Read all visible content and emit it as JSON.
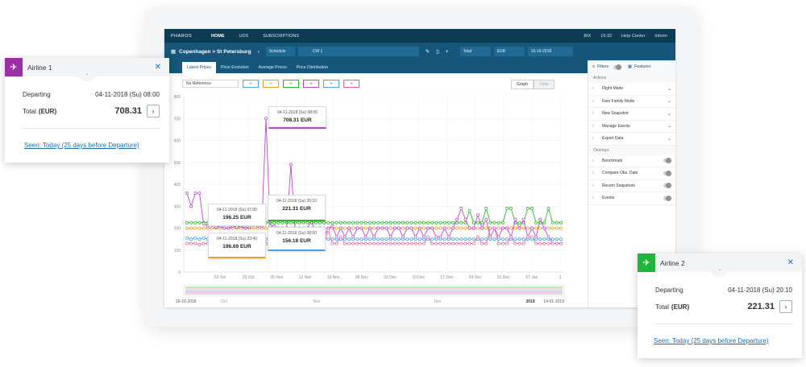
{
  "app": {
    "logo": "PHAROS",
    "nav": [
      "HOME",
      "UDS",
      "SUBSCRIPTIONS"
    ],
    "top_right": [
      "BIX",
      "15:32",
      "Help Center",
      "Inform"
    ],
    "route": "Copenhagen > St Petersburg",
    "schedule_label": "Schedule",
    "week": "CW 1",
    "total": "Total",
    "currency": "EUR",
    "date": "16-16-2018",
    "tabs": [
      "Latest Prices",
      "Price Evolution",
      "Average Prices",
      "Price Distribution"
    ],
    "filters_label": "Filters",
    "features_label": "Features",
    "reference": "No Reference",
    "graph_label": "Graph",
    "table_label": "Table"
  },
  "right_panel": {
    "actions_title": "Actions",
    "actions": [
      "Flight Mode",
      "Fare Family Mode",
      "New Snapshot",
      "Manage Events",
      "Export Data"
    ],
    "overlays_title": "Overlays",
    "overlays": [
      "Benchmark",
      "Compare Obs. Date",
      "Recent Snapshots",
      "Events"
    ]
  },
  "chart_data": {
    "type": "line",
    "x_ticks": [
      "22 Oct",
      "29 Oct",
      "05 Nov",
      "12 Nov",
      "19 Nov",
      "26 Nov",
      "03 Dec",
      "10 Dec",
      "17 Dec",
      "24 Dec",
      "31 Dec",
      "07 Jan",
      "1"
    ],
    "y_ticks": [
      "0",
      "100",
      "200",
      "300",
      "400",
      "500",
      "600",
      "700",
      "800"
    ],
    "ylim": [
      0,
      800
    ],
    "range_start": "16-16-2018",
    "range_end": "14-01-2019",
    "range_months": [
      "Oct",
      "Nov",
      "Dec",
      "2019"
    ],
    "series": [
      {
        "color": "#2ab52a",
        "values": [
          225,
          225,
          225,
          225,
          225,
          225,
          225,
          225,
          225,
          225,
          225,
          225,
          225,
          225,
          225,
          225,
          225,
          225,
          225,
          225,
          225,
          225,
          225,
          225,
          225,
          225,
          225,
          225,
          225,
          225,
          225,
          225,
          225,
          225,
          225,
          225,
          225,
          225,
          225,
          225,
          225,
          225,
          225,
          225,
          225,
          225,
          225,
          225,
          225,
          225,
          225,
          225,
          225,
          225,
          225,
          225,
          225,
          225,
          225,
          225,
          225,
          225,
          225,
          225,
          225,
          225,
          225,
          225,
          280,
          225,
          225,
          225,
          290,
          225,
          225,
          225,
          225,
          290,
          290,
          225,
          225,
          225,
          290,
          290,
          225,
          225,
          225,
          290,
          225,
          225,
          225
        ]
      },
      {
        "color": "#f29b2c",
        "values": [
          200,
          200,
          200,
          200,
          200,
          200,
          200,
          200,
          200,
          200,
          200,
          200,
          200,
          200,
          200,
          200,
          200,
          200,
          200,
          200,
          200,
          200,
          200,
          200,
          200,
          200,
          200,
          200,
          200,
          200,
          200,
          200,
          200,
          200,
          200,
          200,
          200,
          200,
          200,
          200,
          200,
          200,
          200,
          200,
          200,
          200,
          200,
          200,
          200,
          200,
          200,
          200,
          200,
          200,
          200,
          200,
          200,
          200,
          200,
          200,
          200,
          200,
          200,
          200,
          200,
          200,
          200,
          200,
          200,
          200,
          200,
          200,
          200,
          200,
          200,
          200,
          200,
          200,
          200,
          200,
          200,
          200,
          200,
          200,
          200,
          200,
          200,
          200,
          200,
          200,
          200
        ]
      },
      {
        "color": "#4ba3e3",
        "values": [
          155,
          150,
          155,
          150,
          155,
          150,
          155,
          150,
          150,
          150,
          155,
          150,
          150,
          150,
          150,
          150,
          155,
          150,
          150,
          150,
          150,
          150,
          150,
          150,
          150,
          150,
          150,
          150,
          150,
          150,
          150,
          150,
          150,
          150,
          150,
          150,
          150,
          150,
          150,
          150,
          150,
          150,
          150,
          150,
          150,
          150,
          150,
          150,
          150,
          150,
          150,
          150,
          150,
          150,
          150,
          150,
          150,
          150,
          150,
          150,
          150,
          150,
          150,
          150,
          150,
          150,
          150,
          150,
          150,
          150,
          150,
          150,
          150,
          150,
          150,
          150,
          150,
          150,
          150,
          150,
          150,
          150,
          150,
          150,
          150,
          150,
          150,
          150,
          150,
          150,
          150
        ]
      },
      {
        "color": "#b54ac8",
        "values": [
          360,
          300,
          360,
          360,
          220,
          210,
          215,
          205,
          210,
          200,
          200,
          210,
          205,
          210,
          200,
          205,
          215,
          210,
          210,
          700,
          210,
          210,
          200,
          200,
          200,
          490,
          200,
          200,
          190,
          200,
          240,
          160,
          200,
          160,
          200,
          210,
          160,
          200,
          160,
          200,
          160,
          200,
          200,
          160,
          200,
          160,
          200,
          200,
          200,
          160,
          200,
          200,
          160,
          200,
          200,
          160,
          200,
          160,
          200,
          200,
          160,
          160,
          200,
          160,
          200,
          240,
          290,
          240,
          200,
          200,
          260,
          200,
          240,
          160,
          200,
          160,
          200,
          200,
          160,
          240,
          200,
          240,
          160,
          200,
          160,
          240,
          200,
          160,
          130,
          130,
          130
        ]
      },
      {
        "color": "#ee5fa8",
        "values": [
          130,
          130,
          130,
          125,
          130,
          130,
          125,
          130,
          130,
          130,
          130,
          125,
          130,
          130,
          130,
          130,
          130,
          130,
          130,
          130,
          130,
          130,
          130,
          130,
          130,
          130,
          130,
          130,
          130,
          130,
          130,
          130,
          130,
          130,
          190,
          130,
          130,
          160,
          130,
          130,
          130,
          130,
          130,
          130,
          130,
          130,
          130,
          130,
          130,
          130,
          130,
          130,
          130,
          130,
          130,
          130,
          130,
          130,
          160,
          130,
          130,
          130,
          130,
          130,
          130,
          130,
          130,
          130,
          130,
          130,
          160,
          130,
          130,
          200,
          200,
          130,
          130,
          130,
          160,
          130,
          130,
          130,
          160,
          160,
          130,
          130,
          130,
          130,
          130,
          130,
          130
        ]
      }
    ],
    "tooltips": [
      {
        "date": "04-11-2018 (Su) 08:00",
        "price": "708.31 EUR"
      },
      {
        "date": "04-11-2018 (Su) 07:00",
        "price": "196.25 EUR"
      },
      {
        "date": "04-11-2018 (Su) 20:10",
        "price": "221.31 EUR"
      },
      {
        "date": "04-11-2018 (Su) 23:40",
        "price": "196.69 EUR"
      },
      {
        "date": "04-11-2018 (Su) 08:50",
        "price": "156.18 EUR"
      }
    ]
  },
  "card1": {
    "title": "Airline 1",
    "color": "#9c2fa8",
    "departing_label": "Departing",
    "departing": "04-11-2018 (Su) 08:00",
    "total_label": "Total",
    "currency": "(EUR)",
    "price": "708.31",
    "seen": "Seen: Today (25 days before Departure)"
  },
  "card2": {
    "title": "Airline 2",
    "color": "#1fb53a",
    "departing_label": "Departing",
    "departing": "04-11-2018 (Su) 20:10",
    "total_label": "Total",
    "currency": "(EUR)",
    "price": "221.31",
    "seen": "Seen: Today (25 days before Departure)"
  }
}
